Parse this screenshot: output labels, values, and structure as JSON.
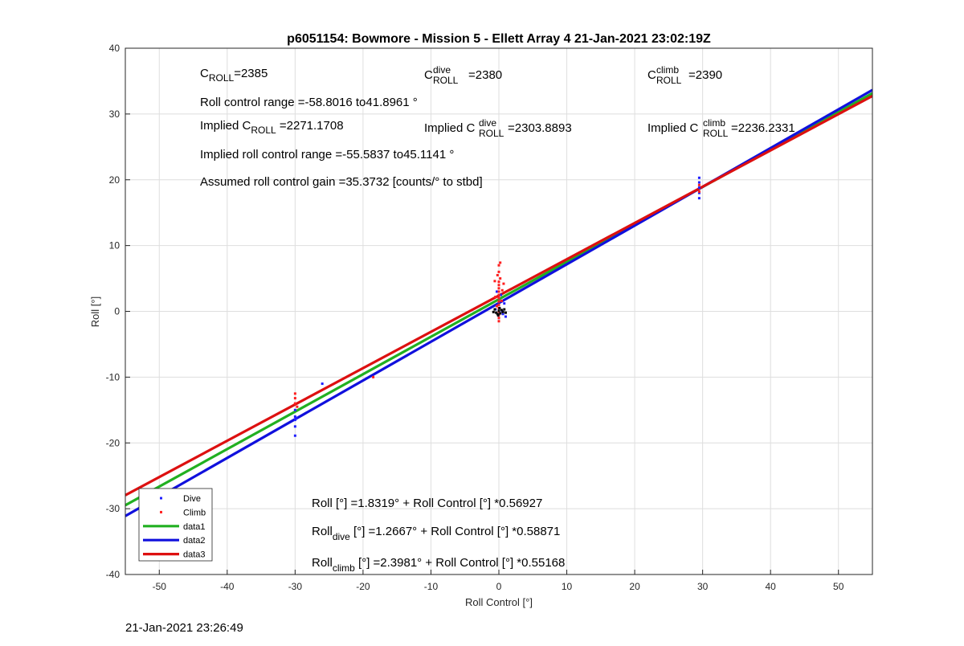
{
  "chart_data": {
    "type": "scatter",
    "title": "p6051154: Bowmore - Mission 5 - Ellett Array 4 21-Jan-2021 23:02:19Z",
    "xlabel": "Roll Control [°]",
    "ylabel": "Roll [°]",
    "xlim": [
      -55,
      55
    ],
    "ylim": [
      -40,
      40
    ],
    "xticks": [
      -50,
      -40,
      -30,
      -20,
      -10,
      0,
      10,
      20,
      30,
      40,
      50
    ],
    "yticks": [
      -40,
      -30,
      -20,
      -10,
      0,
      10,
      20,
      30,
      40
    ],
    "grid": true,
    "legend_position": "bottom-left",
    "colors": {
      "dive": "#1f1fff",
      "climb": "#ff1f1f",
      "data1": "#21b021",
      "data2": "#1010dd",
      "data3": "#dd1010",
      "black": "#000000"
    },
    "series": [
      {
        "name": "Dive",
        "kind": "points",
        "color": "#1f1fff",
        "points": [
          [
            -50,
            -28.5
          ],
          [
            -30,
            -15.0
          ],
          [
            -30,
            -16.0
          ],
          [
            -30,
            -16.5
          ],
          [
            -30,
            -17.5
          ],
          [
            -30,
            -18.9
          ],
          [
            -29.8,
            -16.2
          ],
          [
            -26,
            -11.0
          ],
          [
            0,
            -1.0
          ],
          [
            0,
            -0.5
          ],
          [
            0,
            0.0
          ],
          [
            0,
            0.5
          ],
          [
            0,
            1.0
          ],
          [
            0,
            1.5
          ],
          [
            0,
            2.0
          ],
          [
            0.3,
            2.5
          ],
          [
            -0.3,
            3.0
          ],
          [
            0.5,
            0.0
          ],
          [
            -0.5,
            0.3
          ],
          [
            0.8,
            1.2
          ],
          [
            0.6,
            -0.4
          ],
          [
            1.0,
            -0.8
          ],
          [
            29.5,
            17.2
          ],
          [
            29.5,
            18.0
          ],
          [
            29.5,
            18.8
          ],
          [
            29.5,
            19.6
          ],
          [
            29.5,
            20.3
          ]
        ]
      },
      {
        "name": "Climb",
        "kind": "points",
        "color": "#ff1f1f",
        "points": [
          [
            -30,
            -12.5
          ],
          [
            -30,
            -13.2
          ],
          [
            -30,
            -14.0
          ],
          [
            -29.7,
            -14.5
          ],
          [
            -18.5,
            -10.0
          ],
          [
            0,
            -1.5
          ],
          [
            0,
            -1.0
          ],
          [
            0,
            -0.5
          ],
          [
            0,
            0.0
          ],
          [
            0,
            0.5
          ],
          [
            0,
            1.0
          ],
          [
            0,
            1.5
          ],
          [
            0,
            2.0
          ],
          [
            0,
            2.5
          ],
          [
            0,
            3.0
          ],
          [
            0,
            3.5
          ],
          [
            0,
            4.0
          ],
          [
            0,
            4.5
          ],
          [
            0.2,
            5.0
          ],
          [
            -0.2,
            5.5
          ],
          [
            0,
            6.0
          ],
          [
            0,
            7.0
          ],
          [
            0.2,
            7.4
          ],
          [
            0.5,
            3.2
          ],
          [
            -0.5,
            2.2
          ],
          [
            0.7,
            4.2
          ],
          [
            -0.6,
            4.6
          ],
          [
            0.4,
            1.6
          ],
          [
            -0.3,
            0.8
          ],
          [
            29.5,
            18.2
          ],
          [
            29.5,
            19.2
          ]
        ]
      },
      {
        "name": "",
        "kind": "points",
        "color": "#000000",
        "points": [
          [
            -0.6,
            0.3
          ],
          [
            -0.4,
            -0.2
          ],
          [
            -0.2,
            -0.4
          ],
          [
            0,
            0.1
          ],
          [
            0.2,
            -0.3
          ],
          [
            0.4,
            0.2
          ],
          [
            0.6,
            -0.1
          ],
          [
            0.8,
            0.3
          ],
          [
            1.0,
            -0.2
          ],
          [
            -0.8,
            -0.1
          ],
          [
            0.1,
            0.5
          ],
          [
            -0.1,
            -0.6
          ]
        ]
      },
      {
        "name": "data1",
        "kind": "line",
        "color": "#21b021",
        "intercept": 1.8319,
        "slope": 0.56927
      },
      {
        "name": "data2",
        "kind": "line",
        "color": "#1010dd",
        "intercept": 1.2667,
        "slope": 0.58871
      },
      {
        "name": "data3",
        "kind": "line",
        "color": "#dd1010",
        "intercept": 2.3981,
        "slope": 0.55168
      }
    ],
    "legend": [
      {
        "label": "Dive",
        "kind": "point",
        "color": "#1f1fff"
      },
      {
        "label": "Climb",
        "kind": "point",
        "color": "#ff1f1f"
      },
      {
        "label": "data1",
        "kind": "line",
        "color": "#21b021"
      },
      {
        "label": "data2",
        "kind": "line",
        "color": "#1010dd"
      },
      {
        "label": "data3",
        "kind": "line",
        "color": "#dd1010"
      }
    ],
    "annotations": {
      "c_roll": {
        "base": "C",
        "sub": "ROLL",
        "value": "=2385"
      },
      "c_roll_dive": {
        "base": "C",
        "sup": "dive",
        "sub": "ROLL",
        "value": "=2380"
      },
      "c_roll_climb": {
        "base": "C",
        "sup": "climb",
        "sub": "ROLL",
        "value": "=2390"
      },
      "roll_range": "Roll control range =-58.8016 to41.8961 °",
      "implied_c_roll": {
        "prefix": "Implied C",
        "sub": "ROLL",
        "value": " =2271.1708"
      },
      "implied_c_roll_dive": {
        "prefix": "Implied C",
        "sup": "dive",
        "sub": "ROLL",
        "value": " =2303.8893"
      },
      "implied_c_roll_climb": {
        "prefix": "Implied C",
        "sup": "climb",
        "sub": "ROLL",
        "value": " =2236.2331"
      },
      "implied_range": "Implied roll control range =-55.5837 to45.1141 °",
      "gain": "Assumed roll control gain =35.3732 [counts/° to stbd]",
      "fit_all": "Roll [°] =1.8319° + Roll Control [°] *0.56927",
      "fit_dive": {
        "base": "Roll",
        "sub": "dive",
        "rest": " [°] =1.2667° + Roll Control [°] *0.58871"
      },
      "fit_climb": {
        "base": "Roll",
        "sub": "climb",
        "rest": " [°] =2.3981° + Roll Control [°] *0.55168"
      }
    }
  },
  "footer": {
    "timestamp": "21-Jan-2021 23:26:49"
  }
}
